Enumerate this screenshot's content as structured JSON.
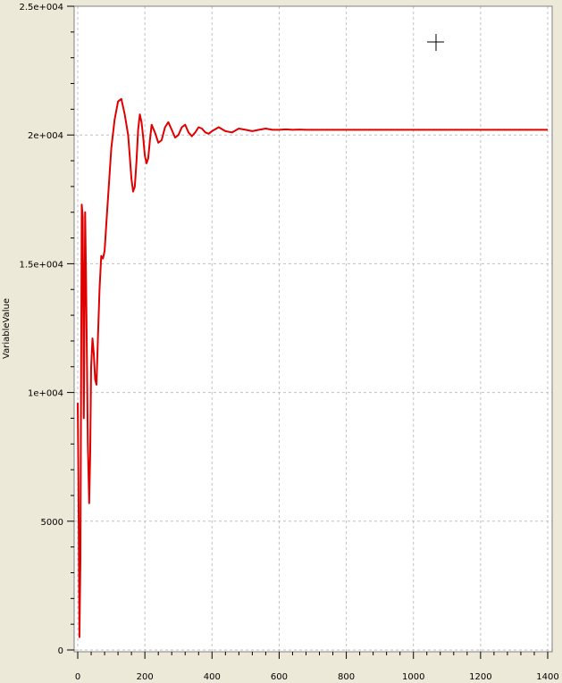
{
  "chart_data": {
    "type": "line",
    "title": "",
    "xlabel": "",
    "ylabel": "VariableValue",
    "xlim": [
      0,
      1400
    ],
    "ylim": [
      0,
      25000
    ],
    "grid": true,
    "legend": "none",
    "x_ticks": [
      0,
      200,
      400,
      600,
      800,
      1000,
      1200,
      1400
    ],
    "y_ticks": [
      {
        "value": 0,
        "label": "0"
      },
      {
        "value": 5000,
        "label": "5000"
      },
      {
        "value": 10000,
        "label": "1e+004"
      },
      {
        "value": 15000,
        "label": "1.5e+004"
      },
      {
        "value": 20000,
        "label": "2e+004"
      },
      {
        "value": 25000,
        "label": "2.5e+004"
      }
    ],
    "series": [
      {
        "color": "#e00000",
        "x": [
          0,
          2,
          5,
          8,
          12,
          15,
          18,
          22,
          25,
          30,
          34,
          37,
          40,
          44,
          48,
          52,
          56,
          60,
          65,
          70,
          75,
          80,
          85,
          90,
          95,
          100,
          110,
          120,
          130,
          140,
          150,
          155,
          160,
          165,
          170,
          175,
          180,
          185,
          190,
          195,
          200,
          205,
          210,
          215,
          220,
          230,
          240,
          250,
          260,
          270,
          280,
          290,
          300,
          310,
          320,
          330,
          340,
          350,
          360,
          370,
          380,
          390,
          400,
          420,
          440,
          460,
          480,
          500,
          520,
          540,
          560,
          580,
          600,
          620,
          640,
          660,
          680,
          700,
          800,
          1000,
          1200,
          1400
        ],
        "y": [
          9600,
          6500,
          500,
          3500,
          17300,
          16800,
          9000,
          17000,
          14200,
          8000,
          5700,
          7500,
          11000,
          12100,
          11500,
          10500,
          10300,
          12000,
          14000,
          15300,
          15200,
          15500,
          16500,
          17500,
          18500,
          19500,
          20600,
          21300,
          21400,
          20800,
          20000,
          19200,
          18300,
          17800,
          18000,
          19000,
          20200,
          20800,
          20500,
          19900,
          19200,
          18900,
          19100,
          19800,
          20400,
          20100,
          19700,
          19800,
          20300,
          20500,
          20200,
          19900,
          20000,
          20300,
          20400,
          20100,
          19950,
          20100,
          20300,
          20250,
          20100,
          20050,
          20150,
          20300,
          20150,
          20100,
          20250,
          20200,
          20150,
          20200,
          20250,
          20200,
          20200,
          20220,
          20200,
          20210,
          20200,
          20200,
          20200,
          20200,
          20200,
          20200
        ]
      }
    ]
  }
}
